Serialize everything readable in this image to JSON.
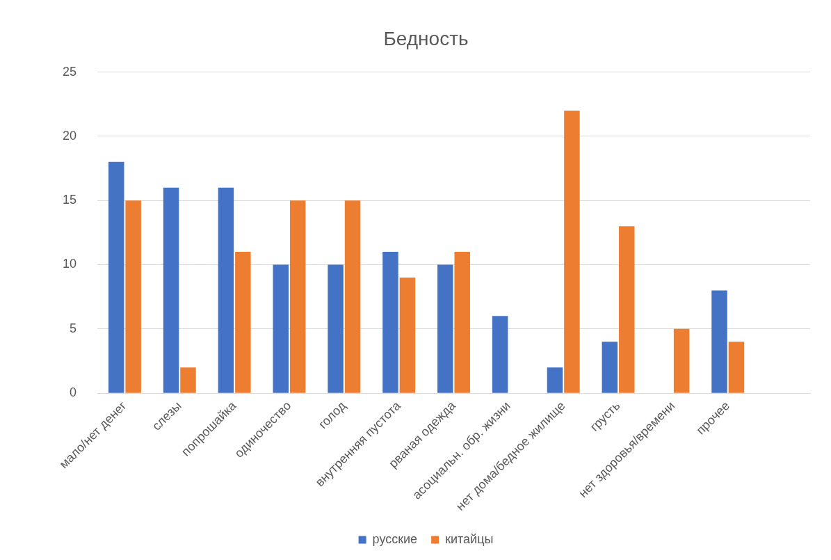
{
  "chart_data": {
    "type": "bar",
    "title": "Бедность",
    "categories": [
      "мало/нет денег",
      "слезы",
      "попрошайка",
      "одиночество",
      "голод",
      "внутренняя пустота",
      "рваная одежда",
      "асоциальн. обр. жизни",
      "нет дома/бедное жилище",
      "грусть",
      "нет здоровья/времени",
      "прочее",
      null
    ],
    "series": [
      {
        "name": "русские",
        "color": "#4472c4",
        "values": [
          18,
          16,
          16,
          10,
          10,
          11,
          10,
          6,
          2,
          4,
          null,
          8,
          null
        ]
      },
      {
        "name": "китайцы",
        "color": "#ed7d31",
        "values": [
          15,
          2,
          11,
          15,
          15,
          9,
          11,
          null,
          22,
          13,
          5,
          4,
          null
        ]
      }
    ],
    "ylim": [
      0,
      25
    ],
    "yticks": [
      0,
      5,
      10,
      15,
      20,
      25
    ],
    "grid": "y",
    "legend": "bottom"
  }
}
